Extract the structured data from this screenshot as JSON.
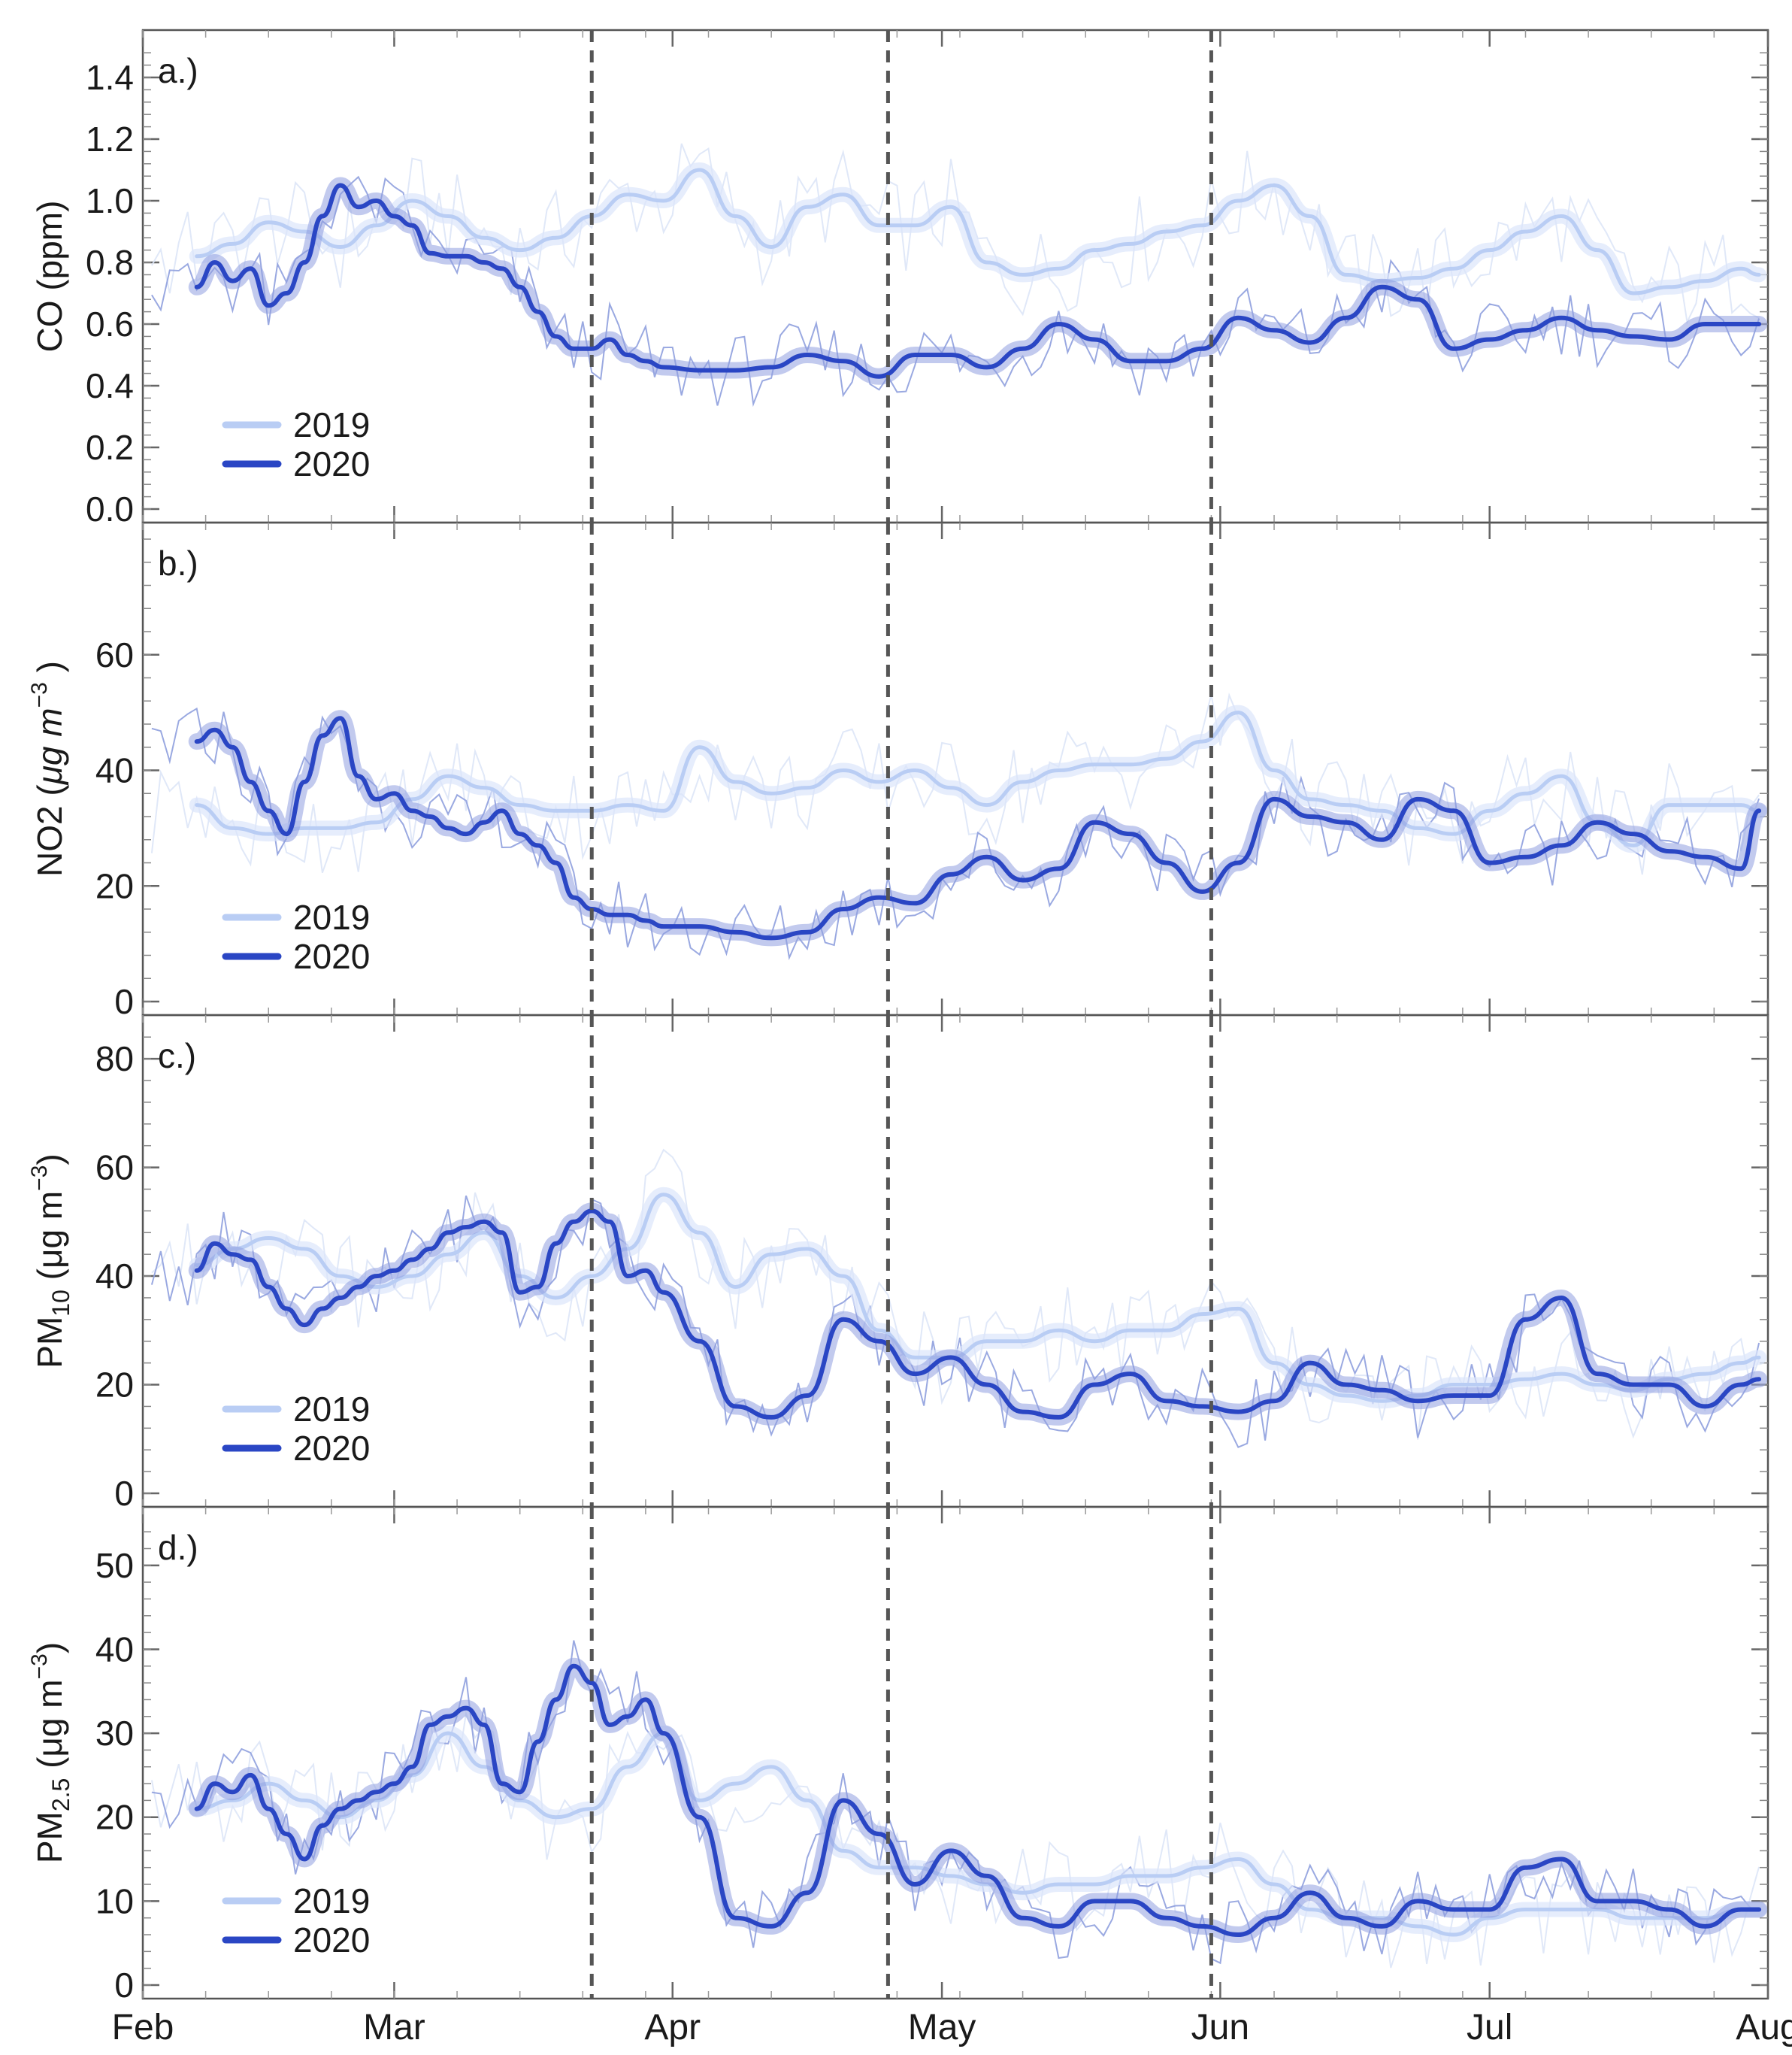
{
  "chart_data": {
    "type": "line",
    "x_axis": {
      "ticks": [
        "Feb",
        "Mar",
        "Apr",
        "May",
        "Jun",
        "Jul",
        "Aug"
      ],
      "day_of_year": [
        32,
        60,
        91,
        121,
        152,
        182,
        213
      ],
      "range": [
        32,
        213
      ]
    },
    "event_markers_day": [
      82,
      115,
      151
    ],
    "colors": {
      "y2019": "#b9cdf4",
      "y2020": "#2a46c4",
      "band2020": "#8f9ee0",
      "band2019": "#dce6fb",
      "raw2019": "#dde6f7",
      "raw2020": "#8fa0de",
      "marker": "#555555"
    },
    "panels": [
      {
        "label": "a.)",
        "ylabel": "CO (ppm)",
        "ylabel_base": "",
        "ylabel_sub": "",
        "ylabel_mid": "",
        "ylabel_sup": "",
        "ylim": [
          0,
          1.5
        ],
        "yticks": [
          0.0,
          0.2,
          0.4,
          0.6,
          0.8,
          1.0,
          1.2,
          1.4
        ],
        "ytick_labels": [
          "0.0",
          "0.2",
          "0.4",
          "0.6",
          "0.8",
          "1.0",
          "1.2",
          "1.4"
        ],
        "legend": [
          "2019",
          "2020"
        ],
        "series": [
          {
            "name": "2019",
            "x": [
              38,
              42,
              46,
              50,
              54,
              58,
              62,
              66,
              70,
              74,
              78,
              82,
              86,
              90,
              94,
              98,
              102,
              106,
              110,
              114,
              118,
              122,
              126,
              130,
              134,
              138,
              142,
              146,
              150,
              154,
              158,
              162,
              166,
              170,
              174,
              178,
              182,
              186,
              190,
              194,
              198,
              202,
              206,
              210,
              212
            ],
            "y": [
              0.82,
              0.86,
              0.93,
              0.9,
              0.85,
              0.92,
              1.0,
              0.95,
              0.88,
              0.84,
              0.88,
              0.95,
              1.02,
              1.0,
              1.1,
              0.95,
              0.85,
              0.98,
              1.02,
              0.92,
              0.92,
              0.98,
              0.8,
              0.76,
              0.78,
              0.84,
              0.86,
              0.9,
              0.92,
              1.0,
              1.05,
              0.95,
              0.76,
              0.74,
              0.75,
              0.78,
              0.84,
              0.9,
              0.95,
              0.84,
              0.7,
              0.72,
              0.74,
              0.78,
              0.76
            ]
          },
          {
            "name": "2020",
            "x": [
              38,
              40,
              42,
              44,
              46,
              48,
              50,
              52,
              54,
              56,
              58,
              60,
              62,
              64,
              66,
              68,
              70,
              72,
              74,
              76,
              78,
              80,
              82,
              84,
              86,
              88,
              90,
              94,
              98,
              102,
              106,
              110,
              114,
              118,
              122,
              126,
              130,
              134,
              138,
              142,
              146,
              150,
              154,
              158,
              162,
              166,
              170,
              174,
              178,
              182,
              186,
              190,
              194,
              198,
              202,
              206,
              210,
              212
            ],
            "y": [
              0.72,
              0.8,
              0.74,
              0.78,
              0.66,
              0.7,
              0.8,
              0.95,
              1.05,
              0.98,
              1.0,
              0.95,
              0.92,
              0.83,
              0.82,
              0.82,
              0.8,
              0.78,
              0.72,
              0.64,
              0.56,
              0.52,
              0.52,
              0.55,
              0.5,
              0.48,
              0.46,
              0.45,
              0.45,
              0.46,
              0.5,
              0.48,
              0.43,
              0.5,
              0.5,
              0.46,
              0.52,
              0.6,
              0.55,
              0.48,
              0.48,
              0.52,
              0.62,
              0.58,
              0.54,
              0.62,
              0.72,
              0.68,
              0.52,
              0.55,
              0.58,
              0.62,
              0.58,
              0.56,
              0.55,
              0.6,
              0.6,
              0.6
            ]
          }
        ]
      },
      {
        "label": "b.)",
        "ylabel": "",
        "ylabel_base": "NO2 (",
        "ylabel_sub": "",
        "ylabel_mid": "μg m",
        "ylabel_sup": "−3",
        "ylabel_end": " )",
        "ylim": [
          0,
          80
        ],
        "yticks": [
          0,
          20,
          40,
          60
        ],
        "ytick_labels": [
          "0",
          "20",
          "40",
          "60"
        ],
        "legend": [
          "2019",
          "2020"
        ],
        "series": [
          {
            "name": "2019",
            "x": [
              38,
              42,
              46,
              50,
              54,
              58,
              62,
              66,
              70,
              74,
              78,
              82,
              86,
              90,
              94,
              98,
              102,
              106,
              110,
              114,
              118,
              122,
              126,
              130,
              134,
              138,
              142,
              146,
              150,
              154,
              158,
              162,
              166,
              170,
              174,
              178,
              182,
              186,
              190,
              194,
              198,
              202,
              206,
              210,
              212
            ],
            "y": [
              34,
              30,
              29,
              30,
              30,
              31,
              35,
              39,
              37,
              34,
              33,
              33,
              34,
              33,
              44,
              38,
              36,
              37,
              40,
              38,
              40,
              37,
              34,
              38,
              40,
              41,
              41,
              42,
              45,
              50,
              40,
              35,
              34,
              33,
              30,
              29,
              33,
              36,
              39,
              31,
              27,
              34,
              34,
              34,
              33
            ]
          },
          {
            "name": "2020",
            "x": [
              38,
              40,
              42,
              44,
              46,
              48,
              50,
              52,
              54,
              56,
              58,
              60,
              62,
              64,
              66,
              68,
              70,
              72,
              74,
              76,
              78,
              80,
              82,
              84,
              86,
              88,
              90,
              94,
              98,
              102,
              106,
              110,
              114,
              118,
              122,
              126,
              130,
              134,
              138,
              142,
              146,
              150,
              154,
              158,
              162,
              166,
              170,
              174,
              178,
              182,
              186,
              190,
              194,
              198,
              202,
              206,
              210,
              212
            ],
            "y": [
              45,
              47,
              44,
              38,
              33,
              29,
              38,
              46,
              49,
              39,
              35,
              36,
              33,
              32,
              30,
              29,
              31,
              33,
              29,
              27,
              24,
              18,
              16,
              15,
              15,
              14,
              13,
              13,
              12,
              11,
              12,
              16,
              18,
              17,
              22,
              25,
              21,
              23,
              31,
              29,
              24,
              19,
              24,
              35,
              32,
              31,
              28,
              35,
              33,
              24,
              25,
              27,
              31,
              29,
              26,
              25,
              23,
              33
            ]
          }
        ]
      },
      {
        "label": "c.)",
        "ylabel": "",
        "ylabel_base": "PM",
        "ylabel_sub": "10",
        "ylabel_mid": " (μg m",
        "ylabel_sup": "−3",
        "ylabel_end": ")",
        "ylim": [
          0,
          85
        ],
        "yticks": [
          0,
          20,
          40,
          60,
          80
        ],
        "ytick_labels": [
          "0",
          "20",
          "40",
          "60",
          "80"
        ],
        "legend": [
          "2019",
          "2020"
        ],
        "series": [
          {
            "name": "2019",
            "x": [
              38,
              42,
              46,
              50,
              54,
              58,
              62,
              66,
              70,
              74,
              78,
              82,
              86,
              90,
              94,
              98,
              102,
              106,
              110,
              114,
              118,
              122,
              126,
              130,
              134,
              138,
              142,
              146,
              150,
              154,
              158,
              162,
              166,
              170,
              174,
              178,
              182,
              186,
              190,
              194,
              198,
              202,
              206,
              210,
              212
            ],
            "y": [
              42,
              45,
              47,
              45,
              40,
              38,
              40,
              44,
              48,
              40,
              36,
              40,
              45,
              55,
              48,
              38,
              44,
              45,
              40,
              30,
              25,
              25,
              28,
              28,
              30,
              28,
              30,
              30,
              33,
              34,
              24,
              20,
              18,
              17,
              18,
              20,
              20,
              21,
              22,
              20,
              19,
              21,
              22,
              24,
              25
            ]
          },
          {
            "name": "2020",
            "x": [
              38,
              40,
              42,
              44,
              46,
              48,
              50,
              52,
              54,
              56,
              58,
              60,
              62,
              64,
              66,
              68,
              70,
              72,
              74,
              76,
              78,
              80,
              82,
              84,
              86,
              88,
              90,
              94,
              98,
              102,
              106,
              110,
              114,
              118,
              122,
              126,
              130,
              134,
              138,
              142,
              146,
              150,
              154,
              158,
              162,
              166,
              170,
              174,
              178,
              182,
              186,
              190,
              194,
              198,
              202,
              206,
              210,
              212
            ],
            "y": [
              41,
              46,
              44,
              43,
              38,
              34,
              31,
              34,
              36,
              38,
              40,
              41,
              43,
              45,
              48,
              49,
              50,
              48,
              37,
              38,
              46,
              50,
              52,
              50,
              40,
              41,
              37,
              28,
              16,
              14,
              18,
              32,
              28,
              22,
              25,
              20,
              15,
              14,
              20,
              22,
              17,
              16,
              15,
              17,
              24,
              20,
              19,
              17,
              18,
              18,
              32,
              36,
              22,
              20,
              20,
              16,
              20,
              21
            ]
          }
        ]
      },
      {
        "label": "d.)",
        "ylabel": "",
        "ylabel_base": "PM",
        "ylabel_sub": "2.5",
        "ylabel_mid": " (μg m",
        "ylabel_sup": "−3",
        "ylabel_end": ")",
        "ylim": [
          0,
          55
        ],
        "yticks": [
          0,
          10,
          20,
          30,
          40,
          50
        ],
        "ytick_labels": [
          "0",
          "10",
          "20",
          "30",
          "40",
          "50"
        ],
        "legend": [
          "2019",
          "2020"
        ],
        "series": [
          {
            "name": "2019",
            "x": [
              38,
              42,
              46,
              50,
              54,
              58,
              62,
              66,
              70,
              74,
              78,
              82,
              86,
              90,
              94,
              98,
              102,
              106,
              110,
              114,
              118,
              122,
              126,
              130,
              134,
              138,
              142,
              146,
              150,
              154,
              158,
              162,
              166,
              170,
              174,
              178,
              182,
              186,
              190,
              194,
              198,
              202,
              206,
              210,
              212
            ],
            "y": [
              21,
              22,
              24,
              22,
              20,
              22,
              25,
              30,
              26,
              22,
              20,
              21,
              26,
              30,
              22,
              24,
              26,
              22,
              16,
              14,
              14,
              13,
              12,
              11,
              12,
              12,
              13,
              13,
              14,
              15,
              12,
              9,
              8,
              8,
              7,
              6,
              8,
              9,
              9,
              9,
              8,
              8,
              8,
              9,
              9
            ]
          },
          {
            "name": "2020",
            "x": [
              38,
              40,
              42,
              44,
              46,
              48,
              50,
              52,
              54,
              56,
              58,
              60,
              62,
              64,
              66,
              68,
              70,
              72,
              74,
              76,
              78,
              80,
              82,
              84,
              86,
              88,
              90,
              94,
              98,
              102,
              106,
              110,
              114,
              118,
              122,
              126,
              130,
              134,
              138,
              142,
              146,
              150,
              154,
              158,
              162,
              166,
              170,
              174,
              178,
              182,
              186,
              190,
              194,
              198,
              202,
              206,
              210,
              212
            ],
            "y": [
              21,
              24,
              23,
              25,
              21,
              18,
              15,
              19,
              21,
              22,
              23,
              24,
              26,
              31,
              32,
              33,
              31,
              24,
              23,
              29,
              34,
              38,
              36,
              31,
              32,
              34,
              30,
              20,
              8,
              7,
              11,
              22,
              18,
              12,
              16,
              13,
              8,
              7,
              10,
              10,
              8,
              7,
              6,
              8,
              11,
              8,
              7,
              10,
              9,
              9,
              14,
              15,
              10,
              10,
              9,
              7,
              9,
              9
            ]
          }
        ]
      }
    ]
  }
}
